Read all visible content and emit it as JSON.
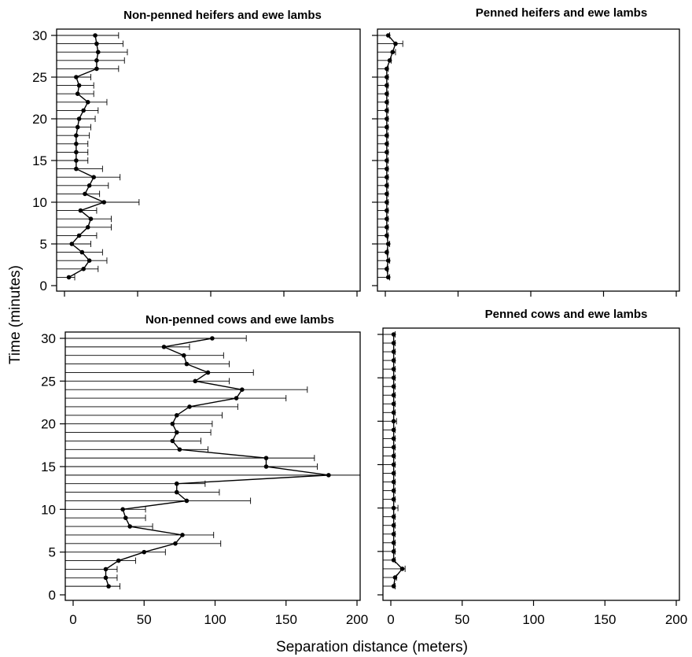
{
  "figure": {
    "ylabel": "Time (minutes)",
    "xlabel": "Separation distance (meters)"
  },
  "chart_data": [
    {
      "type": "line",
      "title": "Non-penned heifers and ewe lambs",
      "xlim": [
        0,
        200
      ],
      "ylim": [
        0,
        30
      ],
      "xticks": [
        0,
        50,
        100,
        150,
        200
      ],
      "yticks": [
        0,
        5,
        10,
        15,
        20,
        25,
        30
      ],
      "show_x_tick_labels": false,
      "show_y_tick_labels": true,
      "time": [
        1,
        2,
        3,
        4,
        5,
        6,
        7,
        8,
        9,
        10,
        11,
        12,
        13,
        14,
        15,
        16,
        17,
        18,
        19,
        20,
        21,
        22,
        23,
        24,
        25,
        26,
        27,
        28,
        29,
        30
      ],
      "distance": [
        3,
        13,
        17,
        12,
        5,
        10,
        16,
        18,
        11,
        27,
        14,
        17,
        20,
        8,
        8,
        8,
        8,
        8,
        9,
        10,
        13,
        16,
        9,
        10,
        8,
        22,
        22,
        23,
        22,
        21
      ],
      "err_plus": [
        4,
        10,
        12,
        14,
        13,
        12,
        16,
        14,
        11,
        24,
        10,
        13,
        18,
        18,
        8,
        8,
        8,
        9,
        9,
        11,
        10,
        13,
        11,
        10,
        10,
        15,
        19,
        20,
        18,
        16
      ]
    },
    {
      "type": "line",
      "title": "Penned heifers and ewe lambs",
      "xlim": [
        0,
        200
      ],
      "ylim": [
        0,
        30
      ],
      "xticks": [
        0,
        50,
        100,
        150,
        200
      ],
      "yticks": [
        0,
        5,
        10,
        15,
        20,
        25,
        30
      ],
      "show_x_tick_labels": false,
      "show_y_tick_labels": false,
      "time": [
        1,
        2,
        3,
        4,
        5,
        6,
        7,
        8,
        9,
        10,
        11,
        12,
        13,
        14,
        15,
        16,
        17,
        18,
        19,
        20,
        21,
        22,
        23,
        24,
        25,
        26,
        27,
        28,
        29,
        30
      ],
      "distance": [
        2,
        1,
        2,
        1,
        2,
        1,
        1,
        1,
        1,
        1,
        1,
        1,
        1,
        1,
        1,
        1,
        1,
        1,
        1,
        1,
        1,
        1,
        1,
        1,
        1,
        1,
        3,
        5,
        7,
        2
      ],
      "err_plus": [
        1,
        1,
        1,
        1,
        1,
        1,
        1,
        1,
        1,
        1,
        1,
        1,
        1,
        1,
        1,
        1,
        1,
        1,
        1,
        1,
        1,
        1,
        1,
        1,
        1,
        1,
        1,
        2,
        5,
        1
      ]
    },
    {
      "type": "line",
      "title": "Non-penned cows and ewe lambs",
      "xlim": [
        0,
        200
      ],
      "ylim": [
        0,
        30
      ],
      "xticks": [
        0,
        50,
        100,
        150,
        200
      ],
      "yticks": [
        0,
        5,
        10,
        15,
        20,
        25,
        30
      ],
      "show_x_tick_labels": true,
      "show_y_tick_labels": true,
      "time": [
        1,
        2,
        3,
        4,
        5,
        6,
        7,
        8,
        9,
        10,
        11,
        12,
        13,
        14,
        15,
        16,
        17,
        18,
        19,
        20,
        21,
        22,
        23,
        24,
        25,
        26,
        27,
        28,
        29,
        30
      ],
      "distance": [
        25,
        23,
        23,
        32,
        50,
        72,
        77,
        40,
        37,
        35,
        80,
        73,
        73,
        180,
        136,
        136,
        75,
        70,
        73,
        70,
        73,
        82,
        115,
        119,
        86,
        95,
        80,
        78,
        64,
        98
      ],
      "err_plus": [
        8,
        8,
        8,
        12,
        15,
        32,
        22,
        16,
        14,
        16,
        45,
        30,
        20,
        45,
        36,
        34,
        20,
        20,
        24,
        28,
        32,
        34,
        35,
        46,
        24,
        32,
        30,
        28,
        18,
        24
      ]
    },
    {
      "type": "line",
      "title": "Penned cows and ewe lambs",
      "xlim": [
        0,
        200
      ],
      "ylim": [
        0,
        30
      ],
      "xticks": [
        0,
        50,
        100,
        150,
        200
      ],
      "yticks": [
        0,
        5,
        10,
        15,
        20,
        25,
        30
      ],
      "show_x_tick_labels": true,
      "show_y_tick_labels": false,
      "time": [
        1,
        2,
        3,
        4,
        5,
        6,
        7,
        8,
        9,
        10,
        11,
        12,
        13,
        14,
        15,
        16,
        17,
        18,
        19,
        20,
        21,
        22,
        23,
        24,
        25,
        26,
        27,
        28,
        29,
        30
      ],
      "distance": [
        2,
        3,
        8,
        2,
        2,
        2,
        2,
        2,
        2,
        2,
        2,
        2,
        2,
        2,
        2,
        2,
        2,
        2,
        2,
        2,
        2,
        2,
        2,
        2,
        2,
        2,
        2,
        2,
        2,
        2
      ],
      "err_plus": [
        1,
        1,
        2,
        1,
        1,
        1,
        1,
        1,
        1,
        3,
        1,
        1,
        1,
        1,
        1,
        1,
        1,
        1,
        1,
        2,
        1,
        1,
        1,
        1,
        1,
        1,
        1,
        1,
        1,
        1
      ]
    }
  ]
}
